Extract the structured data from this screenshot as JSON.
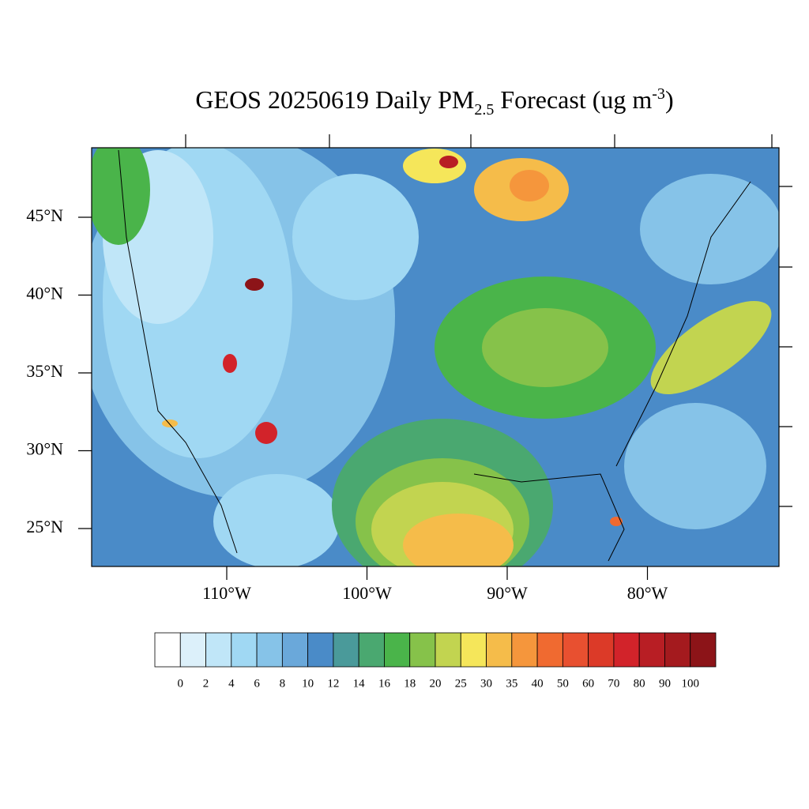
{
  "title": {
    "main": "GEOS 20250619 Daily PM",
    "sub": "2.5",
    "mid": " Forecast (ug m",
    "sup": "-3",
    "end": ")"
  },
  "map": {
    "lat_labels": [
      {
        "value": 45,
        "label": "45°N"
      },
      {
        "value": 40,
        "label": "40°N"
      },
      {
        "value": 35,
        "label": "35°N"
      },
      {
        "value": 30,
        "label": "30°N"
      },
      {
        "value": 25,
        "label": "25°N"
      }
    ],
    "lon_labels": [
      {
        "value": 110,
        "label": "110°W"
      },
      {
        "value": 100,
        "label": "100°W"
      },
      {
        "value": 90,
        "label": "90°W"
      },
      {
        "value": 80,
        "label": "80°W"
      }
    ]
  },
  "colorbar": {
    "labels": [
      0,
      2,
      4,
      6,
      8,
      10,
      12,
      14,
      16,
      18,
      20,
      25,
      30,
      35,
      40,
      50,
      60,
      70,
      80,
      90,
      100
    ],
    "colors": [
      "#ffffff",
      "#dcf0fa",
      "#c0e6f8",
      "#a0d8f3",
      "#86c3e8",
      "#6aa8da",
      "#4a8bc8",
      "#4a9a9a",
      "#4aa870",
      "#4ab44a",
      "#86c24a",
      "#c2d450",
      "#f5e65a",
      "#f5bc4a",
      "#f5963c",
      "#f06a30",
      "#e85030",
      "#dc3a28",
      "#d2232a",
      "#b81e24",
      "#a41a1e",
      "#8c1418"
    ]
  }
}
